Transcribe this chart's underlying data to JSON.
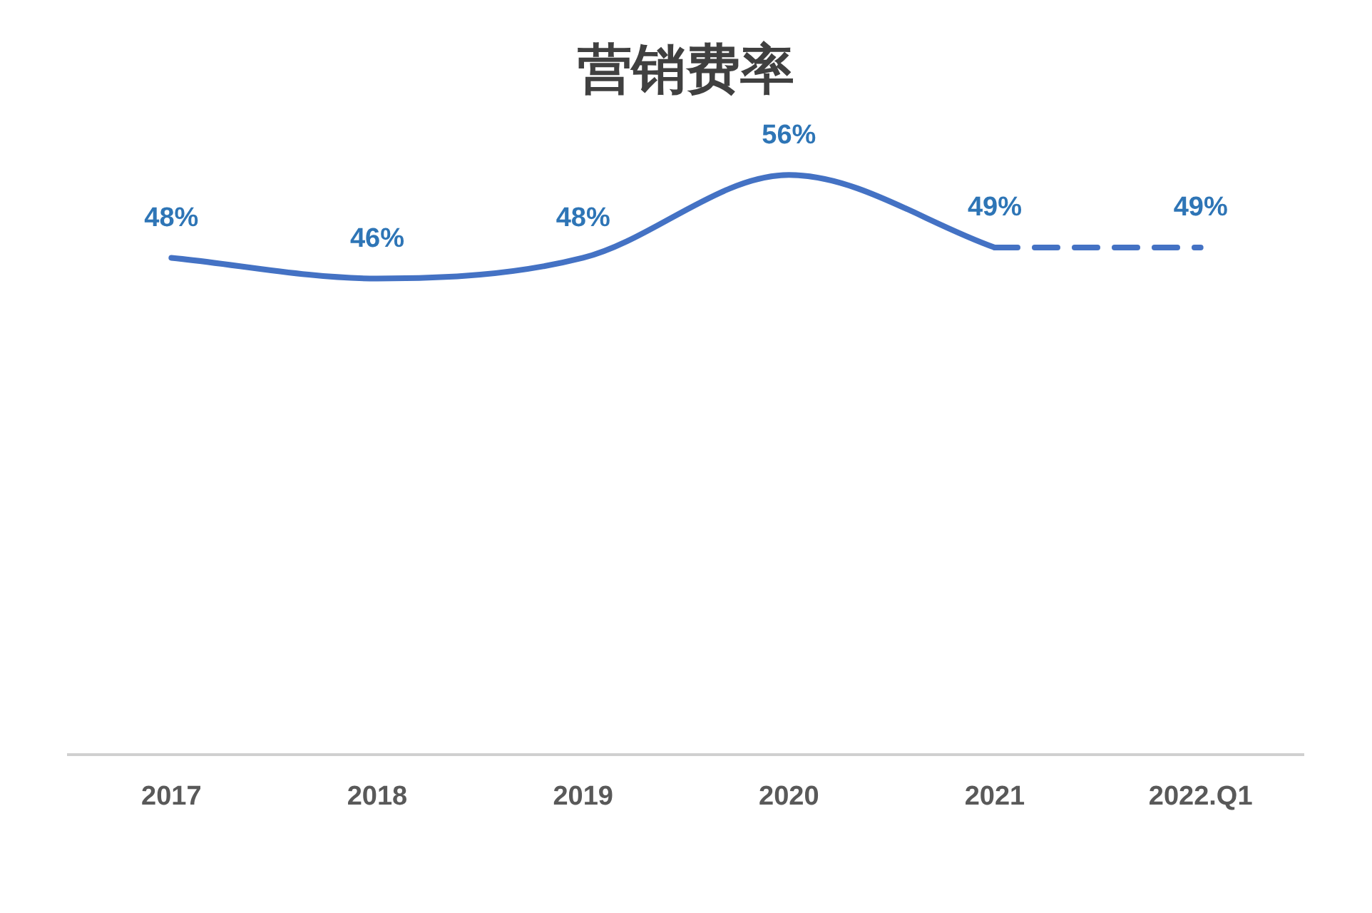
{
  "chart_data": {
    "type": "line",
    "title": "营销费率",
    "categories": [
      "2017",
      "2018",
      "2019",
      "2020",
      "2021",
      "2022.Q1"
    ],
    "grid": false,
    "legend": false,
    "marker": "none",
    "tick_labels": "x",
    "series": [
      {
        "color": "#4472c4",
        "line_style": "solid",
        "values": [
          48,
          46,
          48,
          56,
          49,
          null
        ],
        "value_labels": [
          "48%",
          "46%",
          "48%",
          "56%",
          "49%",
          null
        ]
      },
      {
        "color": "#4472c4",
        "line_style": "dashed",
        "values": [
          null,
          null,
          null,
          null,
          49,
          49
        ],
        "value_labels": [
          null,
          null,
          null,
          null,
          null,
          "49%"
        ]
      }
    ]
  }
}
